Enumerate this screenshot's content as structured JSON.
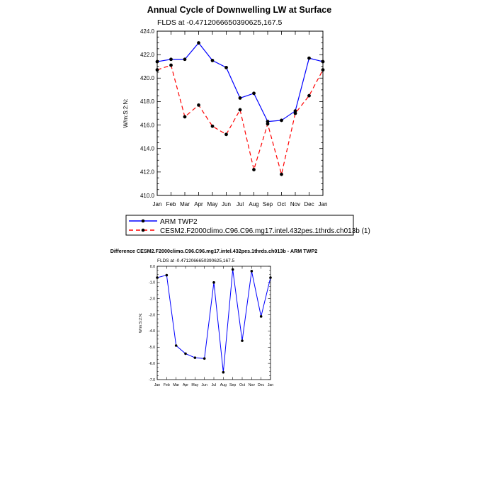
{
  "chart_data": [
    {
      "type": "line",
      "title": "Annual Cycle of Downwelling LW at Surface",
      "subtitle": "FLDS at -0.4712066650390625,167.5",
      "ylabel": "W/m:S:2:N:",
      "xlabel": "",
      "categories": [
        "Jan",
        "Feb",
        "Mar",
        "Apr",
        "May",
        "Jun",
        "Jul",
        "Aug",
        "Sep",
        "Oct",
        "Nov",
        "Dec",
        "Jan"
      ],
      "ylim": [
        410.0,
        424.0
      ],
      "yticks": [
        "410.0",
        "412.0",
        "414.0",
        "416.0",
        "418.0",
        "420.0",
        "422.0",
        "424.0"
      ],
      "grid": false,
      "legend_placement": "below",
      "series": [
        {
          "name": "ARM TWP2",
          "color": "#0000ff",
          "dash": "solid",
          "values": [
            421.4,
            421.6,
            421.6,
            423.0,
            421.5,
            420.9,
            418.3,
            418.7,
            416.3,
            416.4,
            417.2,
            421.7,
            421.4
          ]
        },
        {
          "name": "CESM2.F2000climo.C96.C96.mg17.intel.432pes.1thrds.ch013b (1)",
          "color": "#ff0000",
          "dash": "dashed",
          "values": [
            420.7,
            421.1,
            416.7,
            417.7,
            415.9,
            415.2,
            417.3,
            412.2,
            416.1,
            411.8,
            417.0,
            418.5,
            420.7
          ]
        }
      ]
    },
    {
      "type": "line",
      "title": "Difference CESM2.F2000climo.C96.C96.mg17.intel.432pes.1thrds.ch013b - ARM TWP2",
      "subtitle": "FLDS at -0.4712066650390625,167.5",
      "ylabel": "W/m:S:2:N:",
      "xlabel": "",
      "categories": [
        "Jan",
        "Feb",
        "Mar",
        "Apr",
        "May",
        "Jun",
        "Jul",
        "Aug",
        "Sep",
        "Oct",
        "Nov",
        "Dec",
        "Jan"
      ],
      "ylim": [
        -7.0,
        0.0
      ],
      "yticks": [
        "-7.0",
        "-6.0",
        "-5.0",
        "-4.0",
        "-3.0",
        "-2.0",
        "-1.0",
        "0.0"
      ],
      "grid": false,
      "series": [
        {
          "color": "#0000ff",
          "dash": "solid",
          "values": [
            -0.7,
            -0.55,
            -4.9,
            -5.4,
            -5.65,
            -5.7,
            -1.0,
            -6.55,
            -0.2,
            -4.6,
            -0.3,
            -3.1,
            -0.7
          ]
        }
      ]
    }
  ]
}
